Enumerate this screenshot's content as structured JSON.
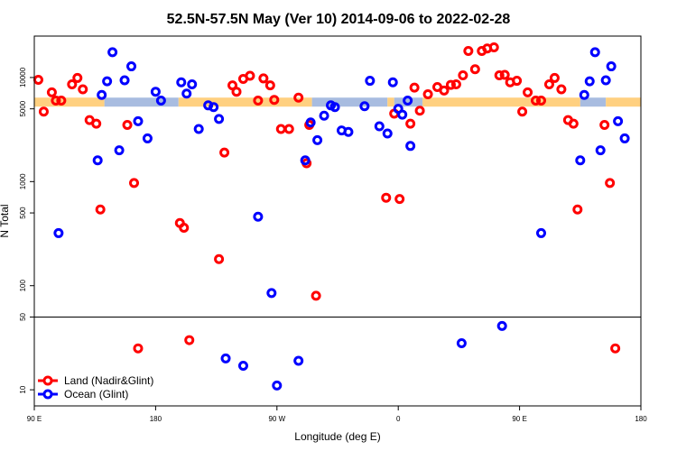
{
  "chart_data": {
    "type": "scatter",
    "title": "52.5N-57.5N May (Ver 10)   2014-09-06 to 2022-02-28",
    "xlabel": "Longitude (deg E)",
    "ylabel": "N Total",
    "x_ticks": [
      {
        "value": 90,
        "label": "90 E"
      },
      {
        "value": 180,
        "label": "180"
      },
      {
        "value": 270,
        "label": "90 W"
      },
      {
        "value": 360,
        "label": "0"
      },
      {
        "value": 450,
        "label": "90 E"
      },
      {
        "value": 540,
        "label": "180"
      }
    ],
    "xlim": [
      90,
      540
    ],
    "y_scale": "log",
    "y_ticks": [
      10,
      50,
      100,
      500,
      1000,
      5000,
      10000
    ],
    "ylim": [
      7,
      25000
    ],
    "threshold_line": 50,
    "colors": {
      "land": "#ff0000",
      "ocean": "#0000ff",
      "land_band": "#ffd080",
      "ocean_band": "#a8bce0"
    },
    "legend": {
      "position": "bottom-left",
      "entries": [
        {
          "label": "Land (Nadir&Glint)",
          "color": "#ff0000"
        },
        {
          "label": "Ocean (Glint)",
          "color": "#0000ff"
        }
      ]
    },
    "series": [
      {
        "name": "Land (Nadir&Glint)",
        "points": [
          [
            93,
            9500
          ],
          [
            97,
            4700
          ],
          [
            103,
            7200
          ],
          [
            106,
            6000
          ],
          [
            110,
            6000
          ],
          [
            118,
            8600
          ],
          [
            122,
            9900
          ],
          [
            126,
            7700
          ],
          [
            131,
            3900
          ],
          [
            136,
            3600
          ],
          [
            139,
            540
          ],
          [
            159,
            3500
          ],
          [
            164,
            970
          ],
          [
            167,
            25
          ],
          [
            198,
            400
          ],
          [
            201,
            360
          ],
          [
            205,
            30
          ],
          [
            227,
            180
          ],
          [
            231,
            1900
          ],
          [
            237,
            8400
          ],
          [
            240,
            7300
          ],
          [
            245,
            9700
          ],
          [
            250,
            10400
          ],
          [
            256,
            6000
          ],
          [
            260,
            9800
          ],
          [
            265,
            8400
          ],
          [
            268,
            6100
          ],
          [
            273,
            3200
          ],
          [
            279,
            3200
          ],
          [
            286,
            6400
          ],
          [
            292,
            1500
          ],
          [
            294,
            3500
          ],
          [
            299,
            80
          ],
          [
            351,
            700
          ],
          [
            357,
            4500
          ],
          [
            361,
            680
          ],
          [
            369,
            3600
          ],
          [
            372,
            8000
          ],
          [
            376,
            4800
          ],
          [
            382,
            6900
          ],
          [
            389,
            8100
          ],
          [
            394,
            7500
          ],
          [
            399,
            8500
          ],
          [
            403,
            8600
          ],
          [
            408,
            10500
          ],
          [
            412,
            18000
          ],
          [
            417,
            12000
          ],
          [
            422,
            18000
          ],
          [
            426,
            19000
          ],
          [
            431,
            19500
          ],
          [
            435,
            10500
          ],
          [
            439,
            10600
          ],
          [
            443,
            9000
          ],
          [
            448,
            9300
          ],
          [
            452,
            4700
          ],
          [
            456,
            7200
          ],
          [
            462,
            6000
          ],
          [
            466,
            6000
          ],
          [
            472,
            8600
          ],
          [
            476,
            9900
          ],
          [
            481,
            7700
          ],
          [
            486,
            3900
          ],
          [
            490,
            3600
          ],
          [
            493,
            540
          ],
          [
            513,
            3500
          ],
          [
            517,
            970
          ],
          [
            521,
            25
          ]
        ]
      },
      {
        "name": "Ocean (Glint)",
        "points": [
          [
            108,
            320
          ],
          [
            137,
            1600
          ],
          [
            140,
            6800
          ],
          [
            144,
            9200
          ],
          [
            148,
            17500
          ],
          [
            153,
            2000
          ],
          [
            157,
            9400
          ],
          [
            162,
            12800
          ],
          [
            167,
            3800
          ],
          [
            174,
            2600
          ],
          [
            180,
            7300
          ],
          [
            184,
            6000
          ],
          [
            199,
            9000
          ],
          [
            203,
            7000
          ],
          [
            207,
            8600
          ],
          [
            212,
            3200
          ],
          [
            219,
            5400
          ],
          [
            223,
            5200
          ],
          [
            227,
            4000
          ],
          [
            232,
            20
          ],
          [
            245,
            17
          ],
          [
            256,
            460
          ],
          [
            266,
            85
          ],
          [
            270,
            11
          ],
          [
            286,
            19
          ],
          [
            291,
            1600
          ],
          [
            295,
            3700
          ],
          [
            300,
            2500
          ],
          [
            305,
            4300
          ],
          [
            310,
            5400
          ],
          [
            313,
            5200
          ],
          [
            318,
            3100
          ],
          [
            323,
            3000
          ],
          [
            335,
            5300
          ],
          [
            339,
            9300
          ],
          [
            346,
            3400
          ],
          [
            352,
            2900
          ],
          [
            356,
            9000
          ],
          [
            360,
            5000
          ],
          [
            363,
            4400
          ],
          [
            367,
            6000
          ],
          [
            369,
            2200
          ],
          [
            407,
            28
          ],
          [
            437,
            41
          ],
          [
            466,
            320
          ],
          [
            495,
            1600
          ],
          [
            498,
            6800
          ],
          [
            502,
            9200
          ],
          [
            506,
            17500
          ],
          [
            510,
            2000
          ],
          [
            514,
            9400
          ],
          [
            518,
            12800
          ],
          [
            523,
            3800
          ],
          [
            528,
            2600
          ]
        ]
      }
    ],
    "band": {
      "y": 5800,
      "segments": [
        {
          "from": 90,
          "to": 108,
          "type": "land"
        },
        {
          "from": 108,
          "to": 142,
          "type": "land"
        },
        {
          "from": 142,
          "to": 197,
          "type": "ocean"
        },
        {
          "from": 197,
          "to": 296,
          "type": "land"
        },
        {
          "from": 296,
          "to": 352,
          "type": "ocean"
        },
        {
          "from": 352,
          "to": 357,
          "type": "land"
        },
        {
          "from": 357,
          "to": 378,
          "type": "ocean"
        },
        {
          "from": 378,
          "to": 495,
          "type": "land"
        },
        {
          "from": 495,
          "to": 514,
          "type": "ocean"
        },
        {
          "from": 514,
          "to": 540,
          "type": "land"
        }
      ]
    }
  }
}
